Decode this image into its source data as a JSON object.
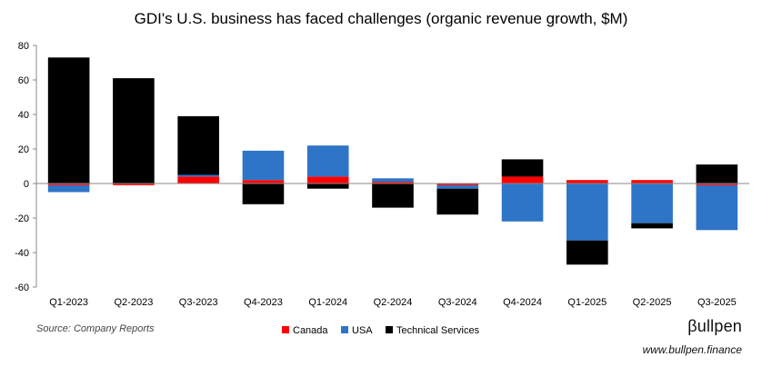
{
  "chart_data": {
    "type": "bar",
    "stacked": true,
    "title": "GDI's U.S. business has faced challenges (organic revenue growth, $M)",
    "categories": [
      "Q1-2023",
      "Q2-2023",
      "Q3-2023",
      "Q4-2023",
      "Q1-2024",
      "Q2-2024",
      "Q3-2024",
      "Q4-2024",
      "Q1-2025",
      "Q2-2025",
      "Q3-2025"
    ],
    "series": [
      {
        "name": "Canada",
        "color": "#ff0000",
        "values": [
          -1,
          -1,
          4,
          2,
          4,
          1,
          -1,
          4,
          2,
          2,
          -1
        ]
      },
      {
        "name": "USA",
        "color": "#2e75c7",
        "values": [
          -4,
          0,
          1,
          17,
          18,
          2,
          -2,
          -22,
          -33,
          -23,
          -26
        ]
      },
      {
        "name": "Technical Services",
        "color": "#000000",
        "values": [
          73,
          61,
          34,
          -12,
          -3,
          -14,
          -15,
          10,
          -14,
          -3,
          11
        ]
      }
    ],
    "ylim": [
      -60,
      80
    ],
    "yticks": [
      -60,
      -40,
      -20,
      0,
      20,
      40,
      60,
      80
    ],
    "xlabel": "",
    "ylabel": "",
    "legend": "bottom-center",
    "grid": false
  },
  "footer": {
    "source": "Source: Company Reports",
    "brand": "βullpen",
    "site": "www.bullpen.finance"
  }
}
